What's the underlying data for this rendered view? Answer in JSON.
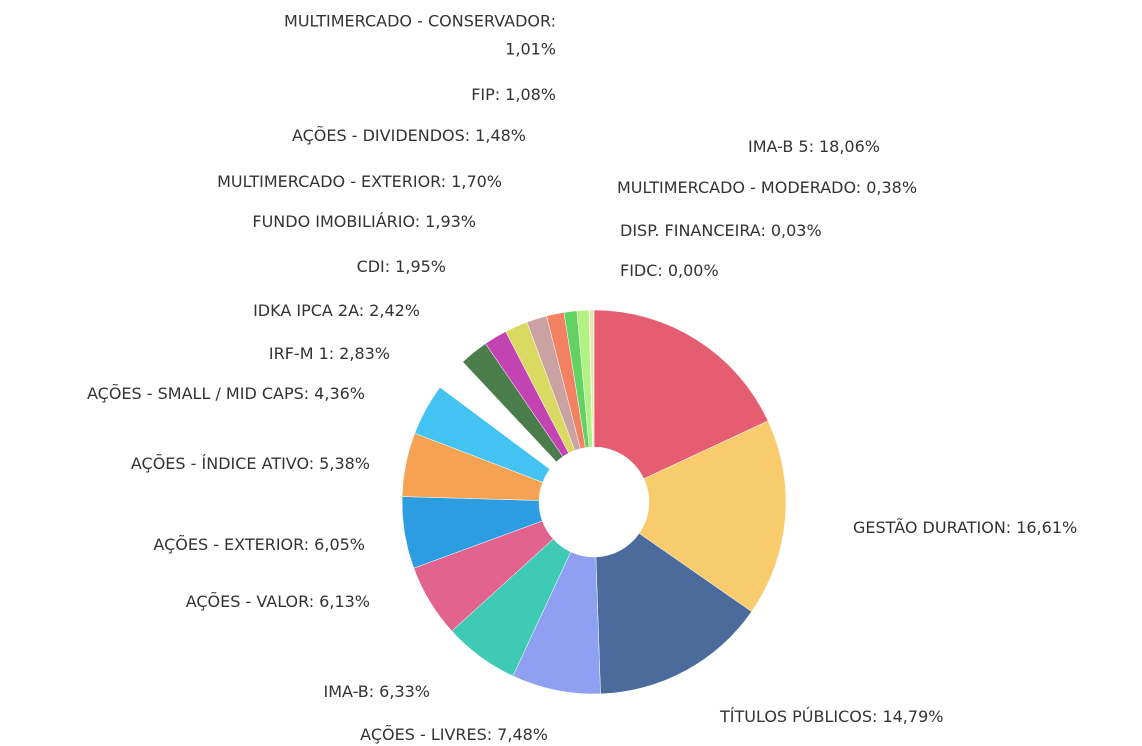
{
  "chart_data": {
    "type": "pie",
    "categories": [
      "IMA-B 5:",
      "GESTÃO DURATION:",
      "TÍTULOS PÚBLICOS:",
      "AÇÕES - LIVRES:",
      "IMA-B:",
      "AÇÕES - VALOR:",
      "AÇÕES - EXTERIOR:",
      "AÇÕES - ÍNDICE ATIVO:",
      "AÇÕES - SMALL / MID CAPS:",
      "IRF-M 1:",
      "IDKA IPCA 2A:",
      "CDI:",
      "FUNDO IMOBILIÁRIO:",
      "MULTIMERCADO - EXTERIOR:",
      "AÇÕES - DIVIDENDOS:",
      "FIP:",
      "MULTIMERCADO - CONSERVADOR:",
      "FIDC:",
      "DISP. FINANCEIRA:",
      "MULTIMERCADO - MODERADO:"
    ],
    "values": [
      18.06,
      16.61,
      14.79,
      7.48,
      6.33,
      6.13,
      6.05,
      5.38,
      4.36,
      2.83,
      2.42,
      1.95,
      1.93,
      1.7,
      1.48,
      1.08,
      1.01,
      0.0,
      0.03,
      0.38
    ],
    "value_labels": [
      "18,06%",
      "16,61%",
      "14,79%",
      "7,48%",
      "6,33%",
      "6,13%",
      "6,05%",
      "5,38%",
      "4,36%",
      "2,83%",
      "2,42%",
      "1,95%",
      "1,93%",
      "1,70%",
      "1,48%",
      "1,08%",
      "1,01%",
      "0,00%",
      "0,03%",
      "0,38%"
    ],
    "colors": [
      "#e45d70",
      "#f8cc6c",
      "#4b6b9c",
      "#8f9ff2",
      "#3fcab6",
      "#e2648e",
      "#2d9de2",
      "#f5a352",
      "#43c3f2",
      "#ffffff",
      "#4b7c4b",
      "#c443b2",
      "#dada62",
      "#caa2a2",
      "#f28262",
      "#62d262",
      "#b2f282",
      "#9aa0a8",
      "#707070",
      "#e8e8b0"
    ]
  }
}
